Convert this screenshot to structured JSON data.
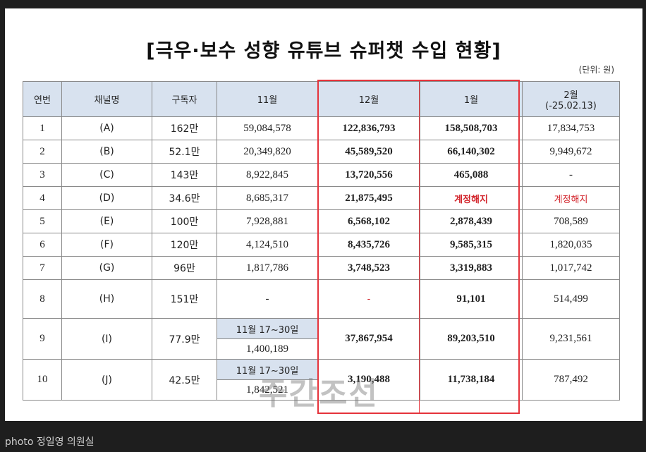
{
  "document": {
    "title": "[극우·보수 성향 유튜브 슈퍼챗 수입 현황]",
    "unit_note": "(단위: 원)",
    "headers": [
      "연번",
      "채널명",
      "구독자",
      "11월",
      "12월",
      "1월",
      "2월",
      "(-25.02.13)"
    ],
    "rows": [
      {
        "no": "1",
        "name": "(A)",
        "subs": "162만",
        "nov": "59,084,578",
        "dec": "122,836,793",
        "jan": "158,508,703",
        "feb": "17,834,753"
      },
      {
        "no": "2",
        "name": "(B)",
        "subs": "52.1만",
        "nov": "20,349,820",
        "dec": "45,589,520",
        "jan": "66,140,302",
        "feb": "9,949,672"
      },
      {
        "no": "3",
        "name": "(C)",
        "subs": "143만",
        "nov": "8,922,845",
        "dec": "13,720,556",
        "jan": "465,088",
        "feb": "-"
      },
      {
        "no": "4",
        "name": "(D)",
        "subs": "34.6만",
        "nov": "8,685,317",
        "dec": "21,875,495",
        "jan": "계정해지",
        "feb": "계정해지"
      },
      {
        "no": "5",
        "name": "(E)",
        "subs": "100만",
        "nov": "7,928,881",
        "dec": "6,568,102",
        "jan": "2,878,439",
        "feb": "708,589"
      },
      {
        "no": "6",
        "name": "(F)",
        "subs": "120만",
        "nov": "4,124,510",
        "dec": "8,435,726",
        "jan": "9,585,315",
        "feb": "1,820,035"
      },
      {
        "no": "7",
        "name": "(G)",
        "subs": "96만",
        "nov": "1,817,786",
        "dec": "3,748,523",
        "jan": "3,319,883",
        "feb": "1,017,742"
      },
      {
        "no": "8",
        "name": "(H)",
        "subs": "151만",
        "nov": "-",
        "dec": "-",
        "jan": "91,101",
        "feb": "514,499"
      },
      {
        "no": "9",
        "name": "(I)",
        "subs": "77.9만",
        "nov_period": "11월 17~30일",
        "nov": "1,400,189",
        "dec": "37,867,954",
        "jan": "89,203,510",
        "feb": "9,231,561"
      },
      {
        "no": "10",
        "name": "(J)",
        "subs": "42.5만",
        "nov_period": "11월 17~30일",
        "nov": "1,842,521",
        "dec": "3,190,488",
        "jan": "11,738,184",
        "feb": "787,492"
      }
    ],
    "watermark": "주간조선"
  },
  "caption": "photo 정일영 의원실",
  "colors": {
    "highlight": "#e5333b",
    "header_bg": "#d8e2ef",
    "terminated_text": "#d2232a",
    "page_bg": "#1e1e1e"
  }
}
